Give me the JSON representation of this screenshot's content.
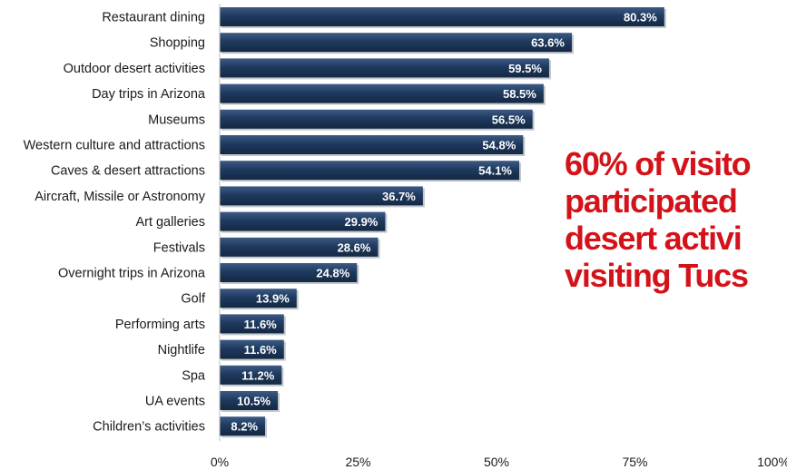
{
  "chart_data": {
    "type": "bar",
    "orientation": "horizontal",
    "categories": [
      "Restaurant dining",
      "Shopping",
      "Outdoor desert activities",
      "Day trips in Arizona",
      "Museums",
      "Western culture and attractions",
      "Caves & desert attractions",
      "Aircraft, Missile or Astronomy",
      "Art galleries",
      "Festivals",
      "Overnight trips in Arizona",
      "Golf",
      "Performing arts",
      "Nightlife",
      "Spa",
      "UA events",
      "Children’s activities"
    ],
    "values": [
      80.3,
      63.6,
      59.5,
      58.5,
      56.5,
      54.8,
      54.1,
      36.7,
      29.9,
      28.6,
      24.8,
      13.9,
      11.6,
      11.6,
      11.2,
      10.5,
      8.2
    ],
    "value_labels": [
      "80.3%",
      "63.6%",
      "59.5%",
      "58.5%",
      "56.5%",
      "54.8%",
      "54.1%",
      "36.7%",
      "29.9%",
      "28.6%",
      "24.8%",
      "13.9%",
      "11.6%",
      "11.6%",
      "11.2%",
      "10.5%",
      "8.2%"
    ],
    "xlim": [
      0,
      100
    ],
    "x_ticks": [
      0,
      25,
      50,
      75,
      100
    ],
    "x_tick_labels": [
      "0%",
      "25%",
      "50%",
      "75%",
      "100%"
    ],
    "grid": false,
    "legend": "none",
    "bar_color": "#1f3a5f",
    "label_color": "#ffffff"
  },
  "callout": {
    "lines": [
      "60% of visito",
      "participated",
      "desert activi",
      "visiting Tucs"
    ],
    "color": "#d4121a"
  }
}
